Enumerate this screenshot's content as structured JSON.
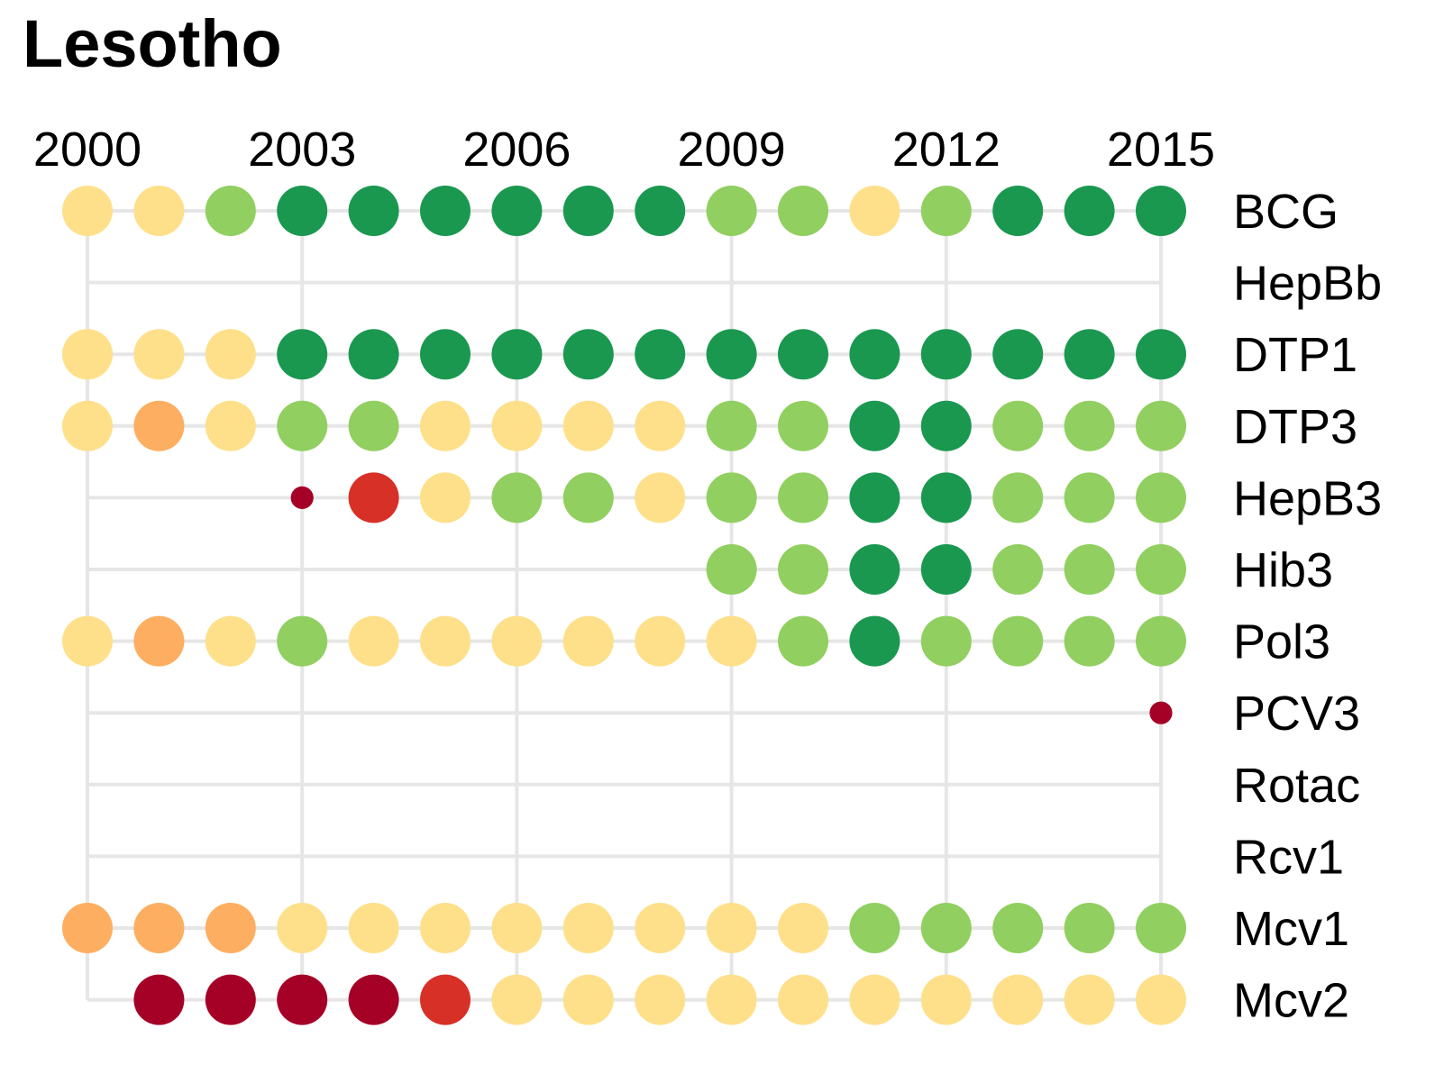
{
  "chart_data": {
    "type": "scatter",
    "title": "Lesotho",
    "x": [
      2000,
      2001,
      2002,
      2003,
      2004,
      2005,
      2006,
      2007,
      2008,
      2009,
      2010,
      2011,
      2012,
      2013,
      2014,
      2015
    ],
    "xlim": [
      2000,
      2015
    ],
    "x_ticks": [
      "2000",
      "2003",
      "2006",
      "2009",
      "2012",
      "2015"
    ],
    "x_axis_position": "top",
    "grid": true,
    "legend": "none",
    "palette": {
      "very_low": "#a50026",
      "low": "#d73027",
      "mid_low": "#fdae61",
      "mid": "#fee08b",
      "high": "#91cf60",
      "very_high": "#1a9850"
    },
    "size_levels": {
      "small": 0.45,
      "full": 1.0
    },
    "series": [
      {
        "name": "BCG",
        "values": [
          "mid",
          "mid",
          "high",
          "very_high",
          "very_high",
          "very_high",
          "very_high",
          "very_high",
          "very_high",
          "high",
          "high",
          "mid",
          "high",
          "very_high",
          "very_high",
          "very_high"
        ]
      },
      {
        "name": "HepBb",
        "values": [
          null,
          null,
          null,
          null,
          null,
          null,
          null,
          null,
          null,
          null,
          null,
          null,
          null,
          null,
          null,
          null
        ]
      },
      {
        "name": "DTP1",
        "values": [
          "mid",
          "mid",
          "mid",
          "very_high",
          "very_high",
          "very_high",
          "very_high",
          "very_high",
          "very_high",
          "very_high",
          "very_high",
          "very_high",
          "very_high",
          "very_high",
          "very_high",
          "very_high"
        ]
      },
      {
        "name": "DTP3",
        "values": [
          "mid",
          "mid_low",
          "mid",
          "high",
          "high",
          "mid",
          "mid",
          "mid",
          "mid",
          "high",
          "high",
          "very_high",
          "very_high",
          "high",
          "high",
          "high"
        ]
      },
      {
        "name": "HepB3",
        "values": [
          null,
          null,
          null,
          "very_low",
          "low",
          "mid",
          "high",
          "high",
          "mid",
          "high",
          "high",
          "very_high",
          "very_high",
          "high",
          "high",
          "high"
        ],
        "sizes": [
          null,
          null,
          null,
          "small",
          "full",
          "full",
          "full",
          "full",
          "full",
          "full",
          "full",
          "full",
          "full",
          "full",
          "full",
          "full"
        ]
      },
      {
        "name": "Hib3",
        "values": [
          null,
          null,
          null,
          null,
          null,
          null,
          null,
          null,
          null,
          "high",
          "high",
          "very_high",
          "very_high",
          "high",
          "high",
          "high"
        ]
      },
      {
        "name": "Pol3",
        "values": [
          "mid",
          "mid_low",
          "mid",
          "high",
          "mid",
          "mid",
          "mid",
          "mid",
          "mid",
          "mid",
          "high",
          "very_high",
          "high",
          "high",
          "high",
          "high"
        ]
      },
      {
        "name": "PCV3",
        "values": [
          null,
          null,
          null,
          null,
          null,
          null,
          null,
          null,
          null,
          null,
          null,
          null,
          null,
          null,
          null,
          "very_low"
        ],
        "sizes": [
          null,
          null,
          null,
          null,
          null,
          null,
          null,
          null,
          null,
          null,
          null,
          null,
          null,
          null,
          null,
          "small"
        ]
      },
      {
        "name": "Rotac",
        "values": [
          null,
          null,
          null,
          null,
          null,
          null,
          null,
          null,
          null,
          null,
          null,
          null,
          null,
          null,
          null,
          null
        ]
      },
      {
        "name": "Rcv1",
        "values": [
          null,
          null,
          null,
          null,
          null,
          null,
          null,
          null,
          null,
          null,
          null,
          null,
          null,
          null,
          null,
          null
        ]
      },
      {
        "name": "Mcv1",
        "values": [
          "mid_low",
          "mid_low",
          "mid_low",
          "mid",
          "mid",
          "mid",
          "mid",
          "mid",
          "mid",
          "mid",
          "mid",
          "high",
          "high",
          "high",
          "high",
          "high"
        ]
      },
      {
        "name": "Mcv2",
        "values": [
          null,
          "very_low",
          "very_low",
          "very_low",
          "very_low",
          "low",
          "mid",
          "mid",
          "mid",
          "mid",
          "mid",
          "mid",
          "mid",
          "mid",
          "mid",
          "mid"
        ]
      }
    ]
  }
}
